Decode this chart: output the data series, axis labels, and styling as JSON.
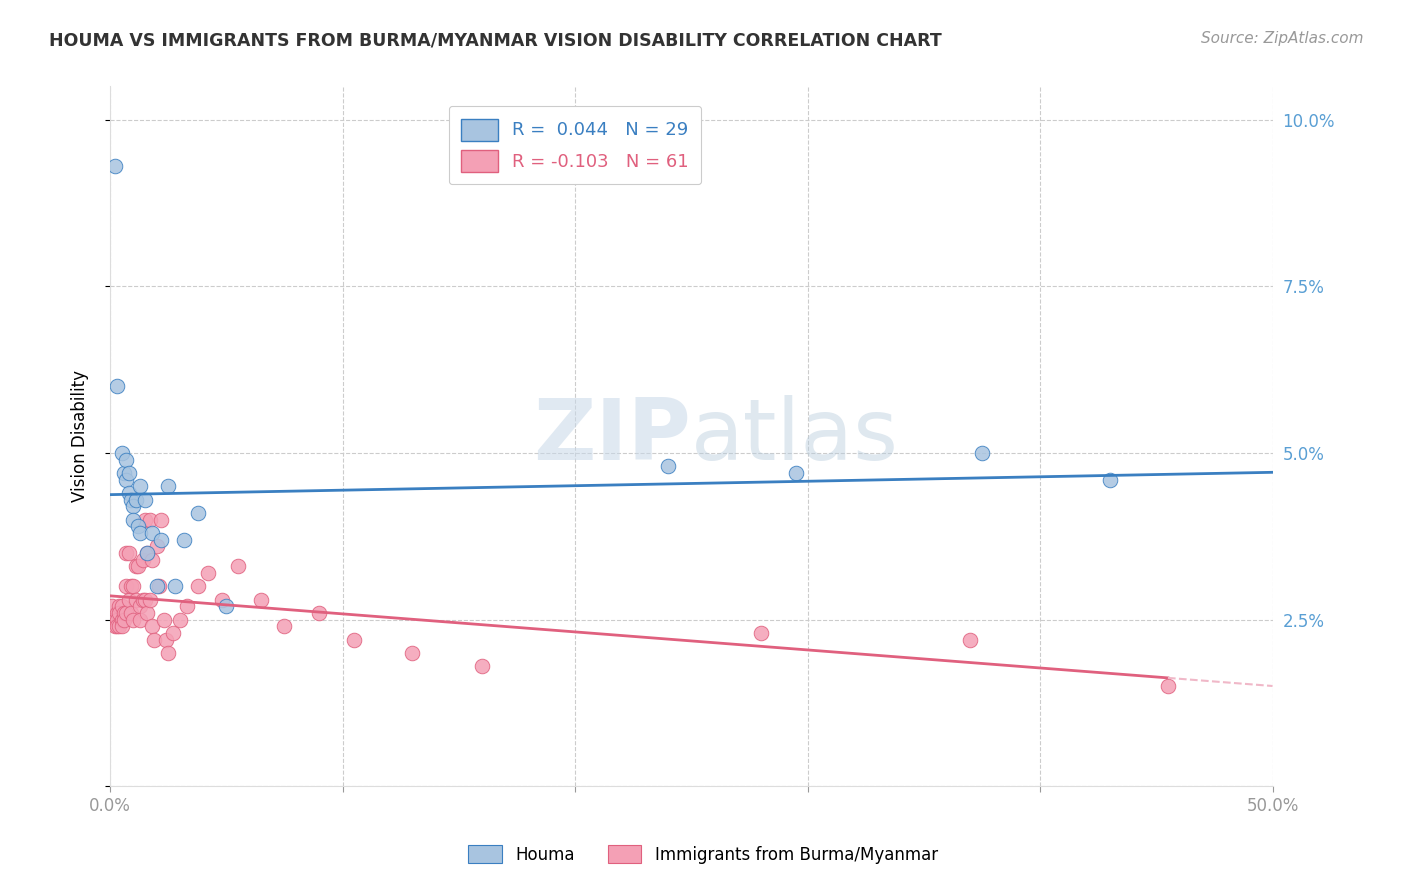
{
  "title": "HOUMA VS IMMIGRANTS FROM BURMA/MYANMAR VISION DISABILITY CORRELATION CHART",
  "source": "Source: ZipAtlas.com",
  "ylabel": "Vision Disability",
  "xlim": [
    0.0,
    0.5
  ],
  "ylim": [
    0.0,
    0.105
  ],
  "xticks": [
    0.0,
    0.1,
    0.2,
    0.3,
    0.4,
    0.5
  ],
  "xtick_labels": [
    "0.0%",
    "",
    "",
    "",
    "",
    "50.0%"
  ],
  "yticks": [
    0.0,
    0.025,
    0.05,
    0.075,
    0.1
  ],
  "houma_R": 0.044,
  "houma_N": 29,
  "burma_R": -0.103,
  "burma_N": 61,
  "houma_color": "#a8c4e0",
  "houma_line_color": "#3a7fc1",
  "burma_color": "#f4a0b5",
  "burma_line_color": "#e0607e",
  "burma_dash_color": "#f0b8c8",
  "watermark_color": "#c8d8e8",
  "background_color": "#ffffff",
  "grid_color": "#cccccc",
  "right_axis_color": "#5a9fd4",
  "title_color": "#333333",
  "source_color": "#999999",
  "houma_x": [
    0.002,
    0.003,
    0.005,
    0.006,
    0.007,
    0.007,
    0.008,
    0.008,
    0.009,
    0.01,
    0.01,
    0.011,
    0.012,
    0.013,
    0.013,
    0.015,
    0.016,
    0.018,
    0.02,
    0.022,
    0.025,
    0.028,
    0.032,
    0.038,
    0.05,
    0.24,
    0.295,
    0.375,
    0.43
  ],
  "houma_y": [
    0.093,
    0.06,
    0.05,
    0.047,
    0.049,
    0.046,
    0.047,
    0.044,
    0.043,
    0.042,
    0.04,
    0.043,
    0.039,
    0.045,
    0.038,
    0.043,
    0.035,
    0.038,
    0.03,
    0.037,
    0.045,
    0.03,
    0.037,
    0.041,
    0.027,
    0.048,
    0.047,
    0.05,
    0.046
  ],
  "burma_x": [
    0.001,
    0.002,
    0.002,
    0.003,
    0.003,
    0.003,
    0.004,
    0.004,
    0.004,
    0.005,
    0.005,
    0.005,
    0.006,
    0.006,
    0.007,
    0.007,
    0.007,
    0.008,
    0.008,
    0.009,
    0.009,
    0.01,
    0.01,
    0.011,
    0.011,
    0.012,
    0.013,
    0.013,
    0.014,
    0.014,
    0.015,
    0.015,
    0.016,
    0.016,
    0.017,
    0.017,
    0.018,
    0.018,
    0.019,
    0.02,
    0.021,
    0.022,
    0.023,
    0.024,
    0.025,
    0.027,
    0.03,
    0.033,
    0.038,
    0.042,
    0.048,
    0.055,
    0.065,
    0.075,
    0.09,
    0.105,
    0.13,
    0.16,
    0.28,
    0.37,
    0.455
  ],
  "burma_y": [
    0.027,
    0.025,
    0.024,
    0.026,
    0.025,
    0.024,
    0.027,
    0.026,
    0.024,
    0.027,
    0.025,
    0.024,
    0.026,
    0.025,
    0.035,
    0.03,
    0.026,
    0.035,
    0.028,
    0.03,
    0.026,
    0.03,
    0.025,
    0.033,
    0.028,
    0.033,
    0.027,
    0.025,
    0.034,
    0.028,
    0.04,
    0.028,
    0.035,
    0.026,
    0.04,
    0.028,
    0.034,
    0.024,
    0.022,
    0.036,
    0.03,
    0.04,
    0.025,
    0.022,
    0.02,
    0.023,
    0.025,
    0.027,
    0.03,
    0.032,
    0.028,
    0.033,
    0.028,
    0.024,
    0.026,
    0.022,
    0.02,
    0.018,
    0.023,
    0.022,
    0.015
  ]
}
